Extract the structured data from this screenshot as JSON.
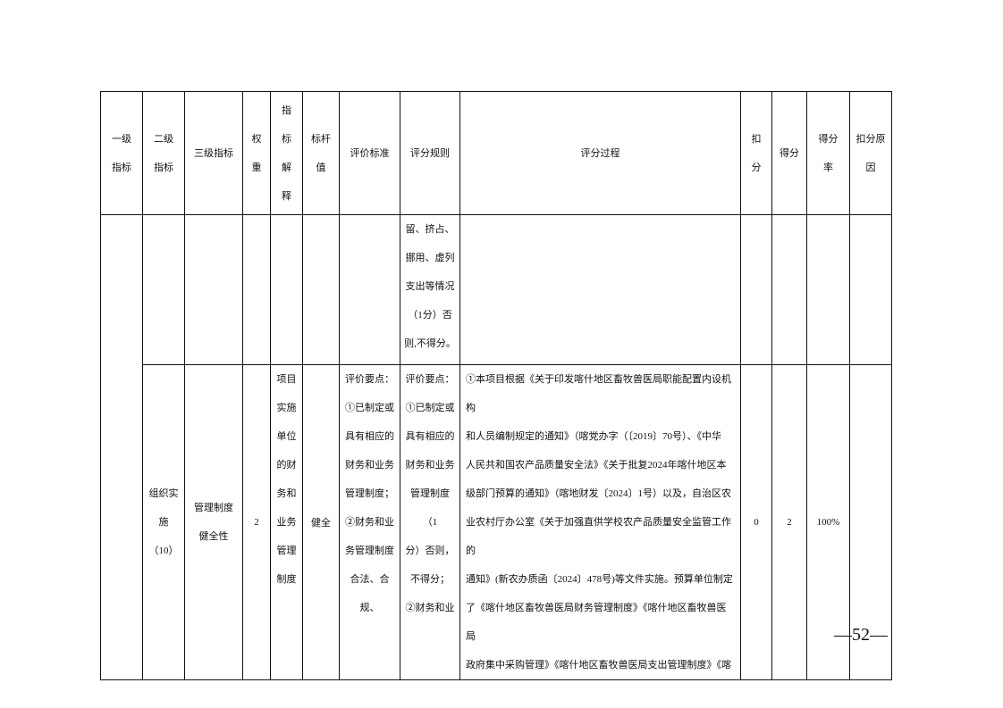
{
  "header": [
    "一级\n指标",
    "二级\n指标",
    "三级指标",
    "权\n重",
    "指\n标\n解\n释",
    "标杆\n值",
    "评价标准",
    "评分规则",
    "评分过程",
    "扣\n分",
    "得分",
    "得分\n率",
    "扣分原\n因"
  ],
  "row1": {
    "scoring_rule": "留、挤占、\n挪用、虚列\n支出等情况\n（1分）否\n则,不得分。"
  },
  "row2": {
    "level2": "组织实\n施（10）",
    "level3": "管理制度\n健全性",
    "weight": "2",
    "explanation": "项目\n实施\n单位\n的财\n务和\n业务\n管理\n制度",
    "benchmark": "健全",
    "criteria": "评价要点：\n①已制定或\n具有相应的\n财务和业务\n管理制度；\n②财务和业\n务管理制度\n合法、合规、",
    "scoring_rule": "评价要点：\n①已制定或\n具有相应的\n财务和业务\n管理制度（1\n分）否则，\n不得分；\n②财务和业",
    "process": "①本项目根据《关于印发喀什地区畜牧兽医局职能配置内设机构\n和人员编制规定的通知》（喀党办字（〔2019〕70号）、《中华\n人民共和国农产品质量安全法》《关于批复2024年喀什地区本\n级部门预算的通知》（喀地财发〔2024〕1号）以及，自治区农\n业农村厅办公室《关于加强直供学校农产品质量安全监管工作的\n通知》(新农办质函〔2024〕478号)等文件实施。预算单位制定\n了《喀什地区畜牧兽医局财务管理制度》《喀什地区畜牧兽医局\n政府集中采购管理》《喀什地区畜牧兽医局支出管理制度》《喀",
    "deduction": "0",
    "score": "2",
    "rate": "100%"
  },
  "page_number": "—52—"
}
